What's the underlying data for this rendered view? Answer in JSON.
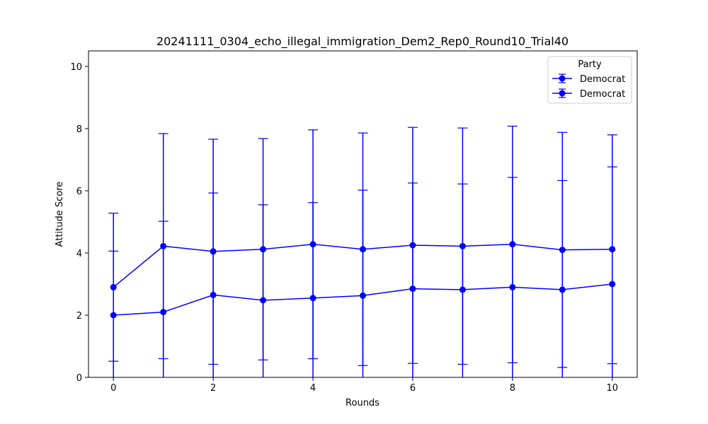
{
  "chart_data": {
    "type": "line",
    "title": "20241111_0304_echo_illegal_immigration_Dem2_Rep0_Round10_Trial40",
    "xlabel": "Rounds",
    "ylabel": "Attitude Score",
    "xlim": [
      -0.5,
      10.5
    ],
    "ylim": [
      0,
      10.5
    ],
    "xticks": [
      0,
      2,
      4,
      6,
      8,
      10
    ],
    "yticks": [
      0,
      2,
      4,
      6,
      8,
      10
    ],
    "grid": false,
    "legend": {
      "title": "Party",
      "placement": "top-right"
    },
    "x": [
      0,
      1,
      2,
      3,
      4,
      5,
      6,
      7,
      8,
      9,
      10
    ],
    "series": [
      {
        "name": "Democrat",
        "color": "#0000ff",
        "values": [
          2.9,
          4.22,
          4.05,
          4.12,
          4.28,
          4.12,
          4.25,
          4.22,
          4.28,
          4.1,
          4.12
        ],
        "err_low": [
          0.52,
          0.0,
          0.0,
          0.0,
          0.0,
          0.0,
          0.0,
          0.0,
          0.0,
          0.0,
          0.0
        ],
        "err_high": [
          5.28,
          7.84,
          7.66,
          7.68,
          7.96,
          7.86,
          8.04,
          8.02,
          8.08,
          7.88,
          7.8
        ]
      },
      {
        "name": "Democrat",
        "color": "#0000ff",
        "values": [
          2.0,
          2.1,
          2.65,
          2.48,
          2.55,
          2.63,
          2.85,
          2.82,
          2.9,
          2.82,
          3.0
        ],
        "err_low": [
          0.0,
          0.6,
          0.42,
          0.56,
          0.6,
          0.38,
          0.45,
          0.42,
          0.47,
          0.32,
          0.44
        ],
        "err_high": [
          4.06,
          5.02,
          5.93,
          5.55,
          5.62,
          6.02,
          6.25,
          6.22,
          6.43,
          6.33,
          6.77
        ]
      }
    ]
  }
}
